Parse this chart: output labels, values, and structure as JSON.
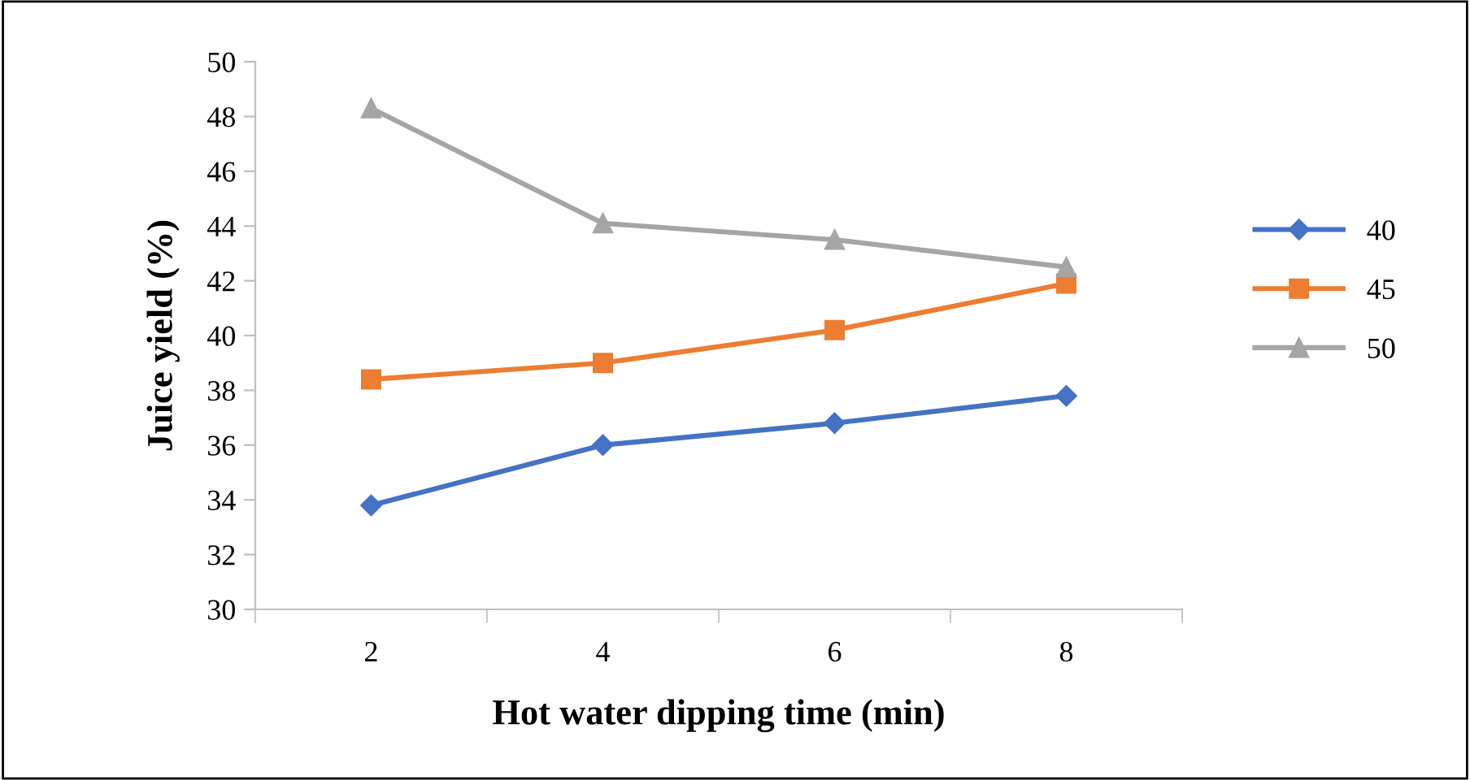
{
  "chart_data": {
    "type": "line",
    "xlabel": "Hot water dipping time (min)",
    "ylabel": "Juice yield (%)",
    "categories": [
      "2",
      "4",
      "6",
      "8"
    ],
    "series": [
      {
        "name": "40",
        "color": "#4472c4",
        "marker": "diamond",
        "values": [
          33.8,
          36.0,
          36.8,
          37.8
        ]
      },
      {
        "name": "45",
        "color": "#ed7d31",
        "marker": "square",
        "values": [
          38.4,
          39.0,
          40.2,
          41.9
        ]
      },
      {
        "name": "50",
        "color": "#a5a5a5",
        "marker": "triangle",
        "values": [
          48.3,
          44.1,
          43.5,
          42.5
        ]
      }
    ],
    "ylim": [
      30,
      50
    ],
    "yticks": [
      30,
      32,
      34,
      36,
      38,
      40,
      42,
      44,
      46,
      48,
      50
    ],
    "grid": false,
    "legend": "right",
    "line_style": "solid"
  }
}
